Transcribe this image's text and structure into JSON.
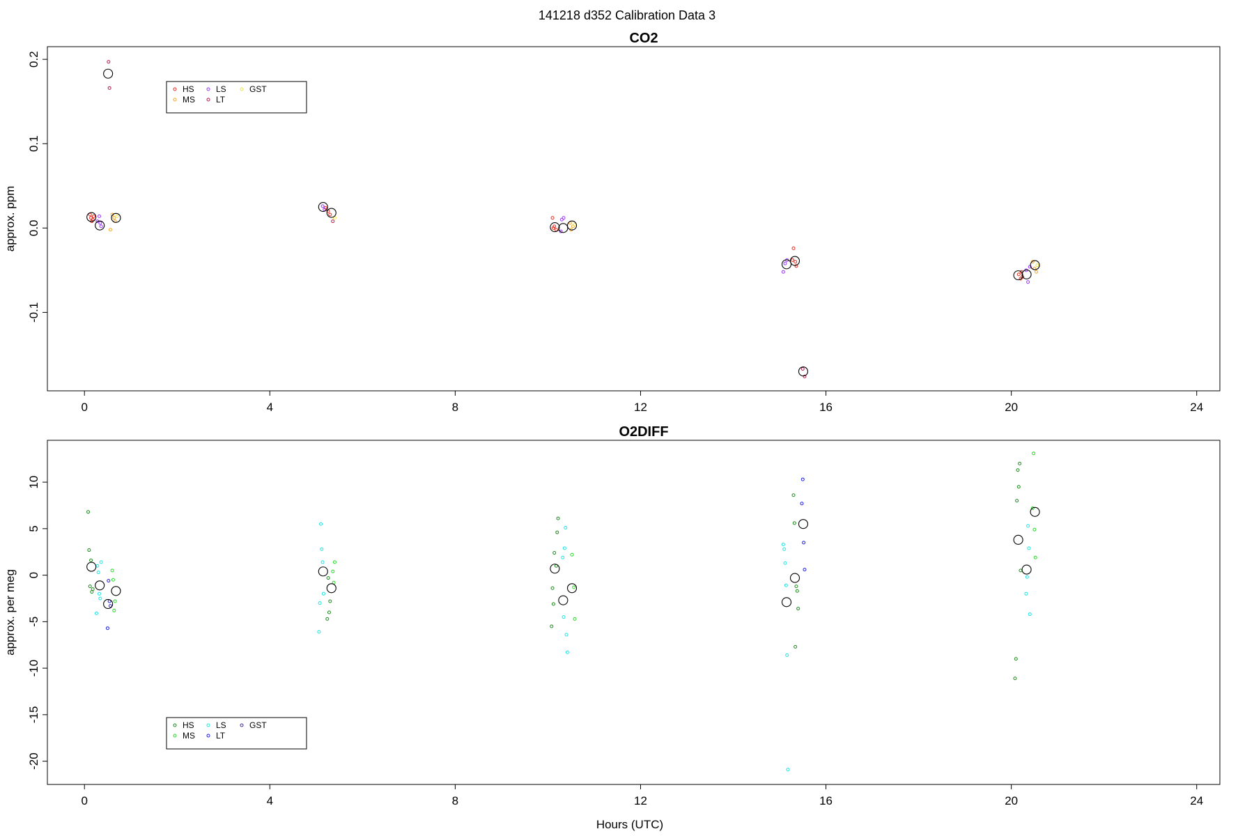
{
  "page_title": "141218   d352   Calibration Data 3",
  "x_axis_label": "Hours (UTC)",
  "chart_data": [
    {
      "type": "scatter",
      "title": "CO2",
      "xlabel": "",
      "ylabel": "approx. ppm",
      "xlim": [
        -0.8,
        24.5
      ],
      "ylim": [
        -0.193,
        0.215
      ],
      "x_ticks": [
        "0",
        "4",
        "8",
        "12",
        "16",
        "20",
        "24"
      ],
      "y_ticks": [
        "-0.1",
        "0.0",
        "0.1",
        "0.2"
      ],
      "y_tick_values": [
        -0.1,
        0.0,
        0.1,
        0.2
      ],
      "legend": {
        "position": "top-left",
        "entries": [
          {
            "label": "HS",
            "color": "#e8291c"
          },
          {
            "label": "MS",
            "color": "#f5a623"
          },
          {
            "label": "LS",
            "color": "#9b30ff"
          },
          {
            "label": "LT",
            "color": "#b5174b"
          },
          {
            "label": "GST",
            "color": "#f0e442"
          }
        ]
      },
      "series": [
        {
          "name": "HS",
          "color": "#e8291c",
          "points": [
            [
              0.12,
              0.016
            ],
            [
              0.14,
              0.012
            ],
            [
              0.18,
              0.01
            ],
            [
              0.2,
              0.014
            ],
            [
              0.16,
              0.008
            ],
            [
              5.2,
              0.024
            ],
            [
              5.26,
              0.02
            ],
            [
              5.3,
              0.016
            ],
            [
              10.1,
              0.012
            ],
            [
              10.14,
              0.002
            ],
            [
              10.18,
              -0.002
            ],
            [
              10.12,
              0.0
            ],
            [
              15.3,
              -0.024
            ],
            [
              15.34,
              -0.04
            ],
            [
              15.36,
              -0.045
            ],
            [
              15.28,
              -0.038
            ],
            [
              20.16,
              -0.055
            ],
            [
              20.2,
              -0.06
            ],
            [
              20.24,
              -0.058
            ],
            [
              20.22,
              -0.052
            ]
          ]
        },
        {
          "name": "MS",
          "color": "#f5a623",
          "points": [
            [
              0.6,
              0.016
            ],
            [
              0.64,
              0.012
            ],
            [
              0.56,
              -0.002
            ],
            [
              0.66,
              0.008
            ],
            [
              10.48,
              0.006
            ],
            [
              10.54,
              0.002
            ],
            [
              10.5,
              -0.002
            ],
            [
              20.46,
              -0.04
            ],
            [
              20.5,
              -0.048
            ],
            [
              20.54,
              -0.052
            ]
          ]
        },
        {
          "name": "LS",
          "color": "#9b30ff",
          "points": [
            [
              0.28,
              0.008
            ],
            [
              0.32,
              0.014
            ],
            [
              0.36,
              0.002
            ],
            [
              0.34,
              0.006
            ],
            [
              5.14,
              0.026
            ],
            [
              5.18,
              0.022
            ],
            [
              10.3,
              0.01
            ],
            [
              10.34,
              0.012
            ],
            [
              10.28,
              -0.004
            ],
            [
              15.12,
              -0.042
            ],
            [
              15.08,
              -0.052
            ],
            [
              15.16,
              -0.038
            ],
            [
              20.32,
              -0.05
            ],
            [
              20.36,
              -0.064
            ],
            [
              20.4,
              -0.046
            ]
          ]
        },
        {
          "name": "LT",
          "color": "#b5174b",
          "points": [
            [
              0.52,
              0.197
            ],
            [
              0.54,
              0.166
            ],
            [
              5.36,
              0.008
            ],
            [
              15.5,
              -0.167
            ],
            [
              15.54,
              -0.176
            ]
          ]
        },
        {
          "name": "GST",
          "color": "#f0e442",
          "points": [
            [
              0.7,
              0.014
            ],
            [
              5.4,
              0.012
            ],
            [
              10.58,
              0.004
            ],
            [
              20.56,
              -0.044
            ]
          ]
        },
        {
          "name": "",
          "color": "#000000",
          "large": true,
          "points": [
            [
              0.15,
              0.013
            ],
            [
              0.33,
              0.003
            ],
            [
              0.51,
              0.183
            ],
            [
              0.68,
              0.012
            ],
            [
              5.15,
              0.025
            ],
            [
              5.33,
              0.018
            ],
            [
              10.15,
              0.001
            ],
            [
              10.33,
              0.0
            ],
            [
              10.52,
              0.003
            ],
            [
              15.15,
              -0.043
            ],
            [
              15.33,
              -0.039
            ],
            [
              15.51,
              -0.17
            ],
            [
              20.15,
              -0.056
            ],
            [
              20.33,
              -0.055
            ],
            [
              20.51,
              -0.044
            ]
          ]
        }
      ]
    },
    {
      "type": "scatter",
      "title": "O2DIFF",
      "xlabel": "Hours (UTC)",
      "ylabel": "approx. per meg",
      "xlim": [
        -0.8,
        24.5
      ],
      "ylim": [
        -22.5,
        14.5
      ],
      "x_ticks": [
        "0",
        "4",
        "8",
        "12",
        "16",
        "20",
        "24"
      ],
      "y_ticks": [
        "-20",
        "-15",
        "-10",
        "-5",
        "0",
        "5",
        "10"
      ],
      "y_tick_values": [
        -20,
        -15,
        -10,
        -5,
        0,
        5,
        10
      ],
      "legend": {
        "position": "bottom-left",
        "entries": [
          {
            "label": "HS",
            "color": "#1a8c1a"
          },
          {
            "label": "MS",
            "color": "#22dd22"
          },
          {
            "label": "LS",
            "color": "#19e6e6"
          },
          {
            "label": "LT",
            "color": "#1a1ae6"
          },
          {
            "label": "GST",
            "color": "#3b2a9e"
          }
        ]
      },
      "series": [
        {
          "name": "HS",
          "color": "#1a8c1a",
          "points": [
            [
              0.08,
              6.8
            ],
            [
              0.1,
              2.7
            ],
            [
              0.14,
              1.6
            ],
            [
              0.12,
              -1.2
            ],
            [
              0.18,
              -1.5
            ],
            [
              0.16,
              -1.8
            ],
            [
              5.26,
              -0.3
            ],
            [
              5.3,
              -2.8
            ],
            [
              5.28,
              -4.0
            ],
            [
              5.24,
              -4.7
            ],
            [
              10.14,
              2.4
            ],
            [
              10.18,
              1.0
            ],
            [
              10.1,
              -1.4
            ],
            [
              10.12,
              -3.1
            ],
            [
              10.08,
              -5.5
            ],
            [
              10.22,
              6.1
            ],
            [
              10.2,
              4.6
            ],
            [
              15.3,
              8.6
            ],
            [
              15.32,
              5.6
            ],
            [
              15.36,
              -1.2
            ],
            [
              15.38,
              -1.7
            ],
            [
              15.4,
              -3.6
            ],
            [
              15.34,
              -7.7
            ],
            [
              20.1,
              -9.0
            ],
            [
              20.08,
              -11.1
            ],
            [
              20.14,
              11.3
            ],
            [
              20.16,
              9.5
            ],
            [
              20.18,
              12.0
            ],
            [
              20.12,
              8.0
            ],
            [
              20.2,
              0.5
            ]
          ]
        },
        {
          "name": "MS",
          "color": "#22dd22",
          "points": [
            [
              0.6,
              0.5
            ],
            [
              0.62,
              -0.5
            ],
            [
              0.66,
              -2.8
            ],
            [
              0.64,
              -3.8
            ],
            [
              5.4,
              1.4
            ],
            [
              5.36,
              0.4
            ],
            [
              5.38,
              -0.8
            ],
            [
              10.52,
              2.2
            ],
            [
              10.56,
              -1.3
            ],
            [
              10.58,
              -4.7
            ],
            [
              20.5,
              4.9
            ],
            [
              20.52,
              1.9
            ],
            [
              20.48,
              13.1
            ],
            [
              20.46,
              7.2
            ]
          ]
        },
        {
          "name": "LS",
          "color": "#19e6e6",
          "points": [
            [
              0.28,
              1.0
            ],
            [
              0.3,
              0.3
            ],
            [
              0.32,
              -2.0
            ],
            [
              0.34,
              -2.5
            ],
            [
              0.26,
              -4.1
            ],
            [
              0.36,
              1.4
            ],
            [
              5.1,
              5.5
            ],
            [
              5.12,
              2.8
            ],
            [
              5.14,
              1.4
            ],
            [
              5.16,
              -2.0
            ],
            [
              5.08,
              -3.0
            ],
            [
              5.06,
              -6.1
            ],
            [
              10.38,
              5.1
            ],
            [
              10.36,
              2.9
            ],
            [
              10.32,
              1.9
            ],
            [
              10.34,
              -4.5
            ],
            [
              10.4,
              -6.4
            ],
            [
              10.42,
              -8.3
            ],
            [
              15.08,
              3.3
            ],
            [
              15.1,
              2.8
            ],
            [
              15.12,
              1.3
            ],
            [
              15.14,
              -1.1
            ],
            [
              15.16,
              -8.6
            ],
            [
              15.18,
              -20.9
            ],
            [
              20.36,
              5.3
            ],
            [
              20.38,
              2.9
            ],
            [
              20.34,
              -0.2
            ],
            [
              20.32,
              -2.0
            ],
            [
              20.4,
              -4.2
            ]
          ]
        },
        {
          "name": "LT",
          "color": "#1a1ae6",
          "points": [
            [
              0.52,
              -0.6
            ],
            [
              0.54,
              -2.8
            ],
            [
              0.5,
              -5.7
            ],
            [
              15.5,
              10.3
            ],
            [
              15.48,
              7.7
            ],
            [
              15.52,
              3.5
            ],
            [
              15.54,
              0.6
            ]
          ]
        },
        {
          "name": "GST",
          "color": "#3b2a9e",
          "points": [
            [
              0.56,
              -3.3
            ]
          ]
        },
        {
          "name": "",
          "color": "#000000",
          "large": true,
          "points": [
            [
              0.15,
              0.9
            ],
            [
              0.33,
              -1.1
            ],
            [
              0.51,
              -3.1
            ],
            [
              0.68,
              -1.7
            ],
            [
              5.15,
              0.4
            ],
            [
              5.33,
              -1.4
            ],
            [
              10.15,
              0.7
            ],
            [
              10.33,
              -2.7
            ],
            [
              10.52,
              -1.4
            ],
            [
              15.15,
              -2.9
            ],
            [
              15.33,
              -0.3
            ],
            [
              15.51,
              5.5
            ],
            [
              20.15,
              3.8
            ],
            [
              20.33,
              0.6
            ],
            [
              20.51,
              6.8
            ]
          ]
        }
      ]
    }
  ]
}
